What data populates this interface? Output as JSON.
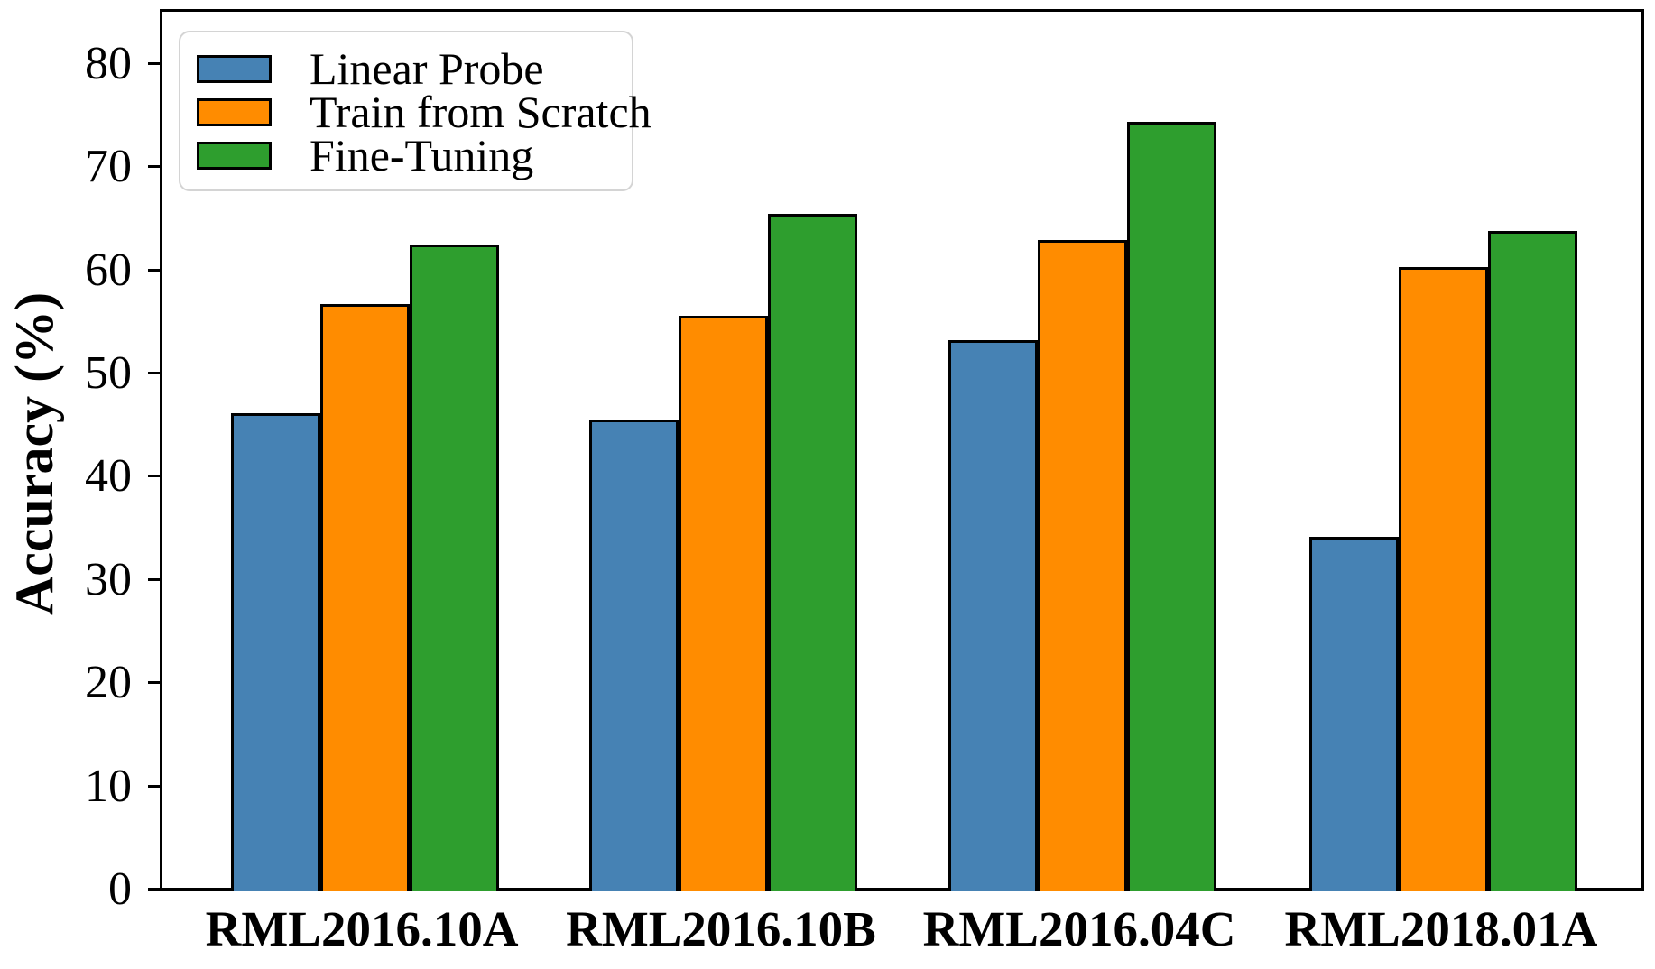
{
  "chart_data": {
    "type": "bar",
    "title": "",
    "ylabel": "Accuracy (%)",
    "xlabel": "",
    "categories": [
      "RML2016.10A",
      "RML2016.10B",
      "RML2016.04C",
      "RML2018.01A"
    ],
    "series": [
      {
        "name": "Linear Probe",
        "color": "#4682B4",
        "values": [
          46.2,
          45.6,
          53.3,
          34.3
        ]
      },
      {
        "name": "Train from Scratch",
        "color": "#FF8C00",
        "values": [
          56.8,
          55.7,
          63.0,
          60.4
        ]
      },
      {
        "name": "Fine-Tuning",
        "color": "#2E9E2E",
        "values": [
          62.6,
          65.6,
          74.5,
          63.9
        ]
      }
    ],
    "yticks": [
      0,
      10,
      20,
      30,
      40,
      50,
      60,
      70,
      80
    ],
    "ylim": [
      0,
      85.4
    ],
    "grid": false,
    "legend_position": "upper left",
    "bar_edge_color": "#000000",
    "axis_color": "#000000"
  }
}
